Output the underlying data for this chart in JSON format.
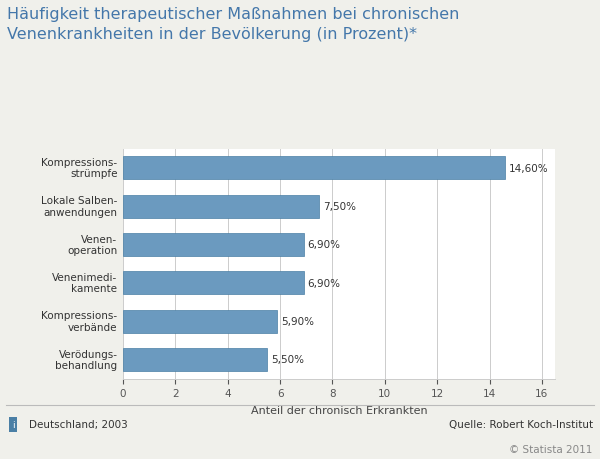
{
  "title": "Häufigkeit therapeutischer Maßnahmen bei chronischen\nVenenkrankheiten in der Bevölkerung (in Prozent)*",
  "categories": [
    "Verödungs-\nbehandlung",
    "Kompressions-\nverbände",
    "Venenimedi-\nkamente",
    "Venen-\noperation",
    "Lokale Salben-\nanwendungen",
    "Kompressions-\nstrümpfe"
  ],
  "values": [
    5.5,
    5.9,
    6.9,
    6.9,
    7.5,
    14.6
  ],
  "bar_color": "#6b9abf",
  "bar_edge_color": "#4a7fa5",
  "xlabel": "Anteil der chronisch Erkrankten",
  "xlim": [
    0,
    16.5
  ],
  "background_color": "#f0f0eb",
  "plot_bg_color": "#ffffff",
  "title_color": "#4477aa",
  "title_fontsize": 11.5,
  "label_fontsize": 7.5,
  "value_fontsize": 7.5,
  "xlabel_fontsize": 8,
  "footer_left": "Deutschland; 2003",
  "footer_right": "Quelle: Robert Koch-Institut",
  "footer_copy": "© Statista 2011",
  "footer_fontsize": 7.5,
  "info_color": "#4a7fa5",
  "grid_color": "#cccccc",
  "xticks": [
    0,
    2,
    4,
    6,
    8,
    10,
    12,
    14,
    16
  ]
}
